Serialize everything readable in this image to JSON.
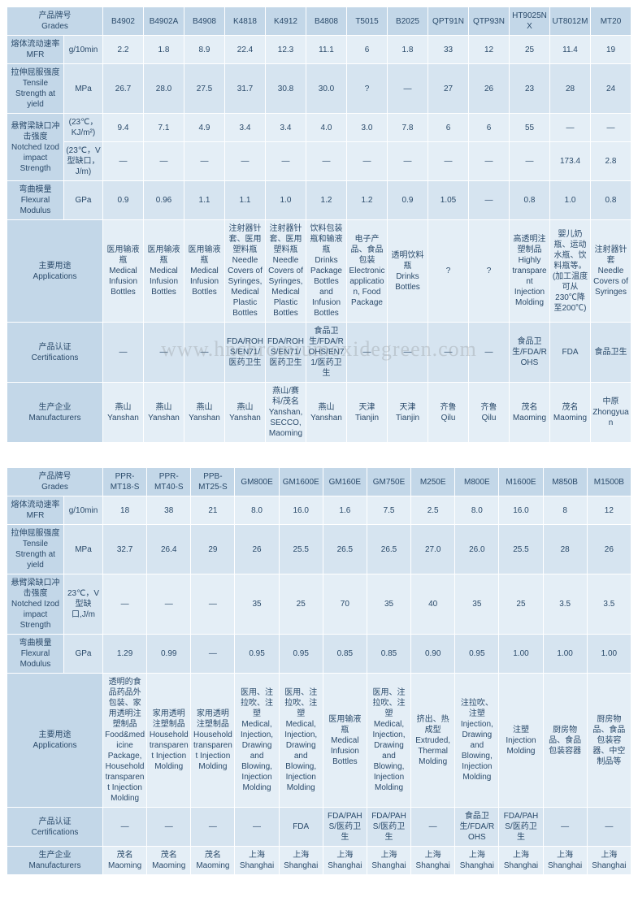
{
  "watermark": "www.hnchromiumoxidegreen.com",
  "table1": {
    "label_col_header": "产品牌号\nGrades",
    "product_codes": [
      "B4902",
      "B4902A",
      "B4908",
      "K4818",
      "K4912",
      "B4808",
      "T5015",
      "B2025",
      "QPT91N",
      "QTP93N",
      "HT9025NX",
      "UT8012M",
      "MT20"
    ],
    "rows": [
      {
        "label": "熔体流动速率\nMFR",
        "unit": "g/10min",
        "vals": [
          "2.2",
          "1.8",
          "8.9",
          "22.4",
          "12.3",
          "11.1",
          "6",
          "1.8",
          "33",
          "12",
          "25",
          "11.4",
          "19"
        ]
      },
      {
        "label": "拉伸屈服强度\nTensile Strength at yield",
        "unit": "MPa",
        "vals": [
          "26.7",
          "28.0",
          "27.5",
          "31.7",
          "30.8",
          "30.0",
          "?",
          "—",
          "27",
          "26",
          "23",
          "28",
          "24"
        ]
      },
      {
        "label_span": "悬臂梁缺口冲击强度\nNotched Izod impact Strength",
        "unit": "(23℃，KJ/m²)",
        "vals": [
          "9.4",
          "7.1",
          "4.9",
          "3.4",
          "3.4",
          "4.0",
          "3.0",
          "7.8",
          "6",
          "6",
          "55",
          "—",
          "—"
        ]
      },
      {
        "unit": "(23℃，V型缺口，J/m)",
        "vals": [
          "—",
          "—",
          "—",
          "—",
          "—",
          "—",
          "—",
          "—",
          "—",
          "—",
          "—",
          "173.4",
          "2.8"
        ]
      },
      {
        "label": "弯曲模量\nFlexural Modulus",
        "unit": "GPa",
        "vals": [
          "0.9",
          "0.96",
          "1.1",
          "1.1",
          "1.0",
          "1.2",
          "1.2",
          "0.9",
          "1.05",
          "—",
          "0.8",
          "1.0",
          "0.8"
        ]
      },
      {
        "label": "主要用途\nApplications",
        "unit": "",
        "vals": [
          "医用输液瓶\nMedical Infusion Bottles",
          "医用输液瓶\nMedical Infusion Bottles",
          "医用输液瓶\nMedical Infusion Bottles",
          "注射器针套、医用塑料瓶\nNeedle Covers of Syringes, Medical Plastic Bottles",
          "注射器针套、医用塑料瓶\nNeedle Covers of Syringes, Medical Plastic Bottles",
          "饮料包装瓶和输液瓶\nDrinks Package Bottles and Infusion Bottles",
          "电子产品、食品包装\nElectronic application, Food Package",
          "透明饮料瓶\nDrinks Bottles",
          "?",
          "?",
          "高透明注塑制品\nHighly transparent Injection Molding",
          "婴儿奶瓶、运动水瓶、饮料瓶等。(加工温度可从230℃降至200℃)",
          "注射器针套\nNeedle Covers of Syringes"
        ]
      },
      {
        "label": "产品认证\nCertifications",
        "unit": "",
        "vals": [
          "—",
          "—",
          "—",
          "FDA/ROHS/EN71/医药卫生",
          "FDA/ROHS/EN71/医药卫生",
          "食品卫生/FDA/ROHS/EN71/医药卫生",
          "—",
          "—",
          "—",
          "—",
          "食品卫生/FDA/ROHS",
          "FDA",
          "食品卫生"
        ]
      },
      {
        "label": "生产企业\nManufacturers",
        "unit": "",
        "vals": [
          "燕山\nYanshan",
          "燕山\nYanshan",
          "燕山\nYanshan",
          "燕山\nYanshan",
          "燕山/赛科/茂名\nYanshan, SECCO, Maoming",
          "燕山\nYanshan",
          "天津\nTianjin",
          "天津\nTianjin",
          "齐鲁\nQilu",
          "齐鲁\nQilu",
          "茂名\nMaoming",
          "茂名\nMaoming",
          "中原\nZhongyuan"
        ]
      }
    ]
  },
  "table2": {
    "label_col_header": "产品牌号\nGrades",
    "product_codes": [
      "PPR-MT18-S",
      "PPR-MT40-S",
      "PPB-MT25-S",
      "GM800E",
      "GM1600E",
      "GM160E",
      "GM750E",
      "M250E",
      "M800E",
      "M1600E",
      "M850B",
      "M1500B"
    ],
    "rows": [
      {
        "label": "熔体流动速率\nMFR",
        "unit": "g/10min",
        "vals": [
          "18",
          "38",
          "21",
          "8.0",
          "16.0",
          "1.6",
          "7.5",
          "2.5",
          "8.0",
          "16.0",
          "8",
          "12"
        ]
      },
      {
        "label": "拉伸屈服强度\nTensile Strength at yield",
        "unit": "MPa",
        "vals": [
          "32.7",
          "26.4",
          "29",
          "26",
          "25.5",
          "26.5",
          "26.5",
          "27.0",
          "26.0",
          "25.5",
          "28",
          "26"
        ]
      },
      {
        "label": "悬臂梁缺口冲击强度\nNotched Izod impact Strength",
        "unit": "23℃，V型缺口,J/m",
        "vals": [
          "—",
          "—",
          "—",
          "35",
          "25",
          "70",
          "35",
          "40",
          "35",
          "25",
          "3.5",
          "3.5"
        ]
      },
      {
        "label": "弯曲模量\nFlexural Modulus",
        "unit": "GPa",
        "vals": [
          "1.29",
          "0.99",
          "—",
          "0.95",
          "0.95",
          "0.85",
          "0.85",
          "0.90",
          "0.95",
          "1.00",
          "1.00",
          "1.00"
        ]
      },
      {
        "label": "主要用途\nApplications",
        "unit": "",
        "vals": [
          "透明的食品药品外包装、家用透明注塑制品\nFood&medicine Package, Household transparent Injection Molding",
          "家用透明注塑制品\nHousehold transparent Injection Molding",
          "家用透明注塑制品\nHousehold transparent Injection Molding",
          "医用、注拉吹、注塑\nMedical, Injection, Drawing and Blowing, Injection Molding",
          "医用、注拉吹、注塑\nMedical, Injection, Drawing and Blowing, Injection Molding",
          "医用输液瓶\nMedical Infusion Bottles",
          "医用、注拉吹、注塑\nMedical, Injection, Drawing and Blowing, Injection Molding",
          "挤出、热成型\nExtruded, Thermal Molding",
          "注拉吹、注塑\nInjection, Drawing and Blowing, Injection Molding",
          "注塑\nInjection Molding",
          "厨房物品、食品包装容器",
          "厨房物品、食品包装容器、中空制品等"
        ]
      },
      {
        "label": "产品认证\nCertifications",
        "unit": "",
        "vals": [
          "—",
          "—",
          "—",
          "—",
          "FDA",
          "FDA/PAHS/医药卫生",
          "FDA/PAHS/医药卫生",
          "—",
          "食品卫生/FDA/ROHS",
          "FDA/PAHS/医药卫生",
          "—",
          "—"
        ]
      },
      {
        "label": "生产企业\nManufacturers",
        "unit": "",
        "vals": [
          "茂名\nMaoming",
          "茂名\nMaoming",
          "茂名\nMaoming",
          "上海\nShanghai",
          "上海\nShanghai",
          "上海\nShanghai",
          "上海\nShanghai",
          "上海\nShanghai",
          "上海\nShanghai",
          "上海\nShanghai",
          "上海\nShanghai",
          "上海\nShanghai"
        ]
      }
    ]
  }
}
